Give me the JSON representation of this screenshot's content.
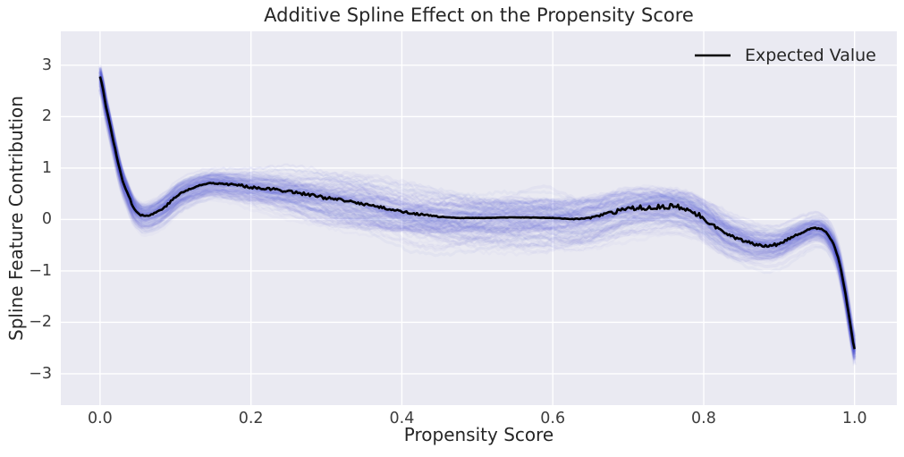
{
  "title": "Additive Spline Effect on the Propensity Score",
  "axes": {
    "xlabel": "Propensity Score",
    "ylabel": "Spline Feature Contribution",
    "bg_color": "#eaeaf2",
    "grid_color": "#ffffff",
    "tick_color": "#3d3d3d",
    "xlim": [
      -0.052,
      1.056
    ],
    "ylim": [
      -3.61,
      3.66
    ],
    "xticks": [
      0.0,
      0.2,
      0.4,
      0.6,
      0.8,
      1.0
    ],
    "xtick_labels": [
      "0.0",
      "0.2",
      "0.4",
      "0.6",
      "0.8",
      "1.0"
    ],
    "yticks": [
      -3,
      -2,
      -1,
      0,
      1,
      2,
      3
    ],
    "ytick_labels": [
      "−3",
      "−2",
      "−1",
      "0",
      "1",
      "2",
      "3"
    ],
    "grid": true
  },
  "legend": {
    "label": "Expected Value",
    "line_color": "#000000",
    "position": "upper right"
  },
  "chart_data": {
    "type": "line",
    "xlabel": "Propensity Score",
    "ylabel": "Spline Feature Contribution",
    "title": "Additive Spline Effect on the Propensity Score",
    "series": [
      {
        "name": "Expected Value",
        "color": "#000000",
        "linewidth": 2.6,
        "points": [
          [
            0.0,
            2.78
          ],
          [
            0.004,
            2.52
          ],
          [
            0.008,
            2.19
          ],
          [
            0.013,
            1.85
          ],
          [
            0.018,
            1.5
          ],
          [
            0.024,
            1.1
          ],
          [
            0.03,
            0.76
          ],
          [
            0.038,
            0.46
          ],
          [
            0.045,
            0.22
          ],
          [
            0.056,
            0.08
          ],
          [
            0.068,
            0.1
          ],
          [
            0.085,
            0.24
          ],
          [
            0.104,
            0.48
          ],
          [
            0.124,
            0.62
          ],
          [
            0.148,
            0.71
          ],
          [
            0.175,
            0.68
          ],
          [
            0.2,
            0.63
          ],
          [
            0.25,
            0.55
          ],
          [
            0.3,
            0.42
          ],
          [
            0.35,
            0.3
          ],
          [
            0.4,
            0.16
          ],
          [
            0.43,
            0.09
          ],
          [
            0.46,
            0.04
          ],
          [
            0.5,
            0.03
          ],
          [
            0.55,
            0.04
          ],
          [
            0.6,
            0.03
          ],
          [
            0.63,
            0.01
          ],
          [
            0.66,
            0.06
          ],
          [
            0.69,
            0.17
          ],
          [
            0.72,
            0.23
          ],
          [
            0.75,
            0.25
          ],
          [
            0.77,
            0.22
          ],
          [
            0.79,
            0.11
          ],
          [
            0.81,
            -0.08
          ],
          [
            0.83,
            -0.28
          ],
          [
            0.855,
            -0.43
          ],
          [
            0.88,
            -0.5
          ],
          [
            0.9,
            -0.47
          ],
          [
            0.92,
            -0.33
          ],
          [
            0.94,
            -0.2
          ],
          [
            0.952,
            -0.17
          ],
          [
            0.962,
            -0.25
          ],
          [
            0.972,
            -0.48
          ],
          [
            0.98,
            -0.85
          ],
          [
            0.988,
            -1.45
          ],
          [
            0.994,
            -2.0
          ],
          [
            1.0,
            -2.52
          ]
        ],
        "noise_amp": [
          [
            0.0,
            0.005
          ],
          [
            0.03,
            0.015
          ],
          [
            0.06,
            0.02
          ],
          [
            0.12,
            0.02
          ],
          [
            0.2,
            0.025
          ],
          [
            0.3,
            0.03
          ],
          [
            0.42,
            0.02
          ],
          [
            0.47,
            0.005
          ],
          [
            0.6,
            0.004
          ],
          [
            0.64,
            0.01
          ],
          [
            0.67,
            0.04
          ],
          [
            0.72,
            0.05
          ],
          [
            0.78,
            0.055
          ],
          [
            0.83,
            0.03
          ],
          [
            0.9,
            0.03
          ],
          [
            0.95,
            0.015
          ],
          [
            1.0,
            0.008
          ]
        ]
      }
    ],
    "band": {
      "description": "cloud of sampled spline curves around the expected value",
      "color": "#5055d8",
      "samples": 130,
      "width_profile": [
        [
          0.0,
          0.3
        ],
        [
          0.03,
          0.3
        ],
        [
          0.06,
          0.33
        ],
        [
          0.1,
          0.35
        ],
        [
          0.15,
          0.33
        ],
        [
          0.2,
          0.4
        ],
        [
          0.3,
          0.55
        ],
        [
          0.4,
          0.6
        ],
        [
          0.5,
          0.6
        ],
        [
          0.6,
          0.6
        ],
        [
          0.68,
          0.55
        ],
        [
          0.75,
          0.5
        ],
        [
          0.82,
          0.5
        ],
        [
          0.88,
          0.42
        ],
        [
          0.93,
          0.35
        ],
        [
          0.96,
          0.3
        ],
        [
          1.0,
          0.3
        ]
      ]
    }
  }
}
